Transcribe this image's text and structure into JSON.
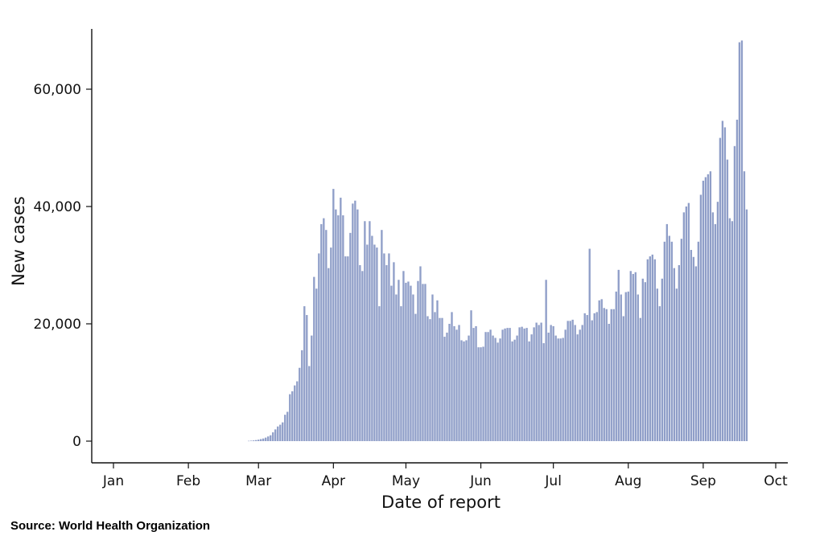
{
  "source_note": "Source:  World Health Organization",
  "chart_data": {
    "type": "bar",
    "title": "",
    "xlabel": "Date of report",
    "ylabel": "New cases",
    "ylim": [
      0,
      70000
    ],
    "yticks": [
      0,
      20000,
      40000,
      60000
    ],
    "ytick_labels": [
      "0",
      "20,000",
      "40,000",
      "60,000"
    ],
    "xticks": [
      {
        "label": "Jan",
        "day": 1
      },
      {
        "label": "Feb",
        "day": 32
      },
      {
        "label": "Mar",
        "day": 61
      },
      {
        "label": "Apr",
        "day": 92
      },
      {
        "label": "May",
        "day": 122
      },
      {
        "label": "Jun",
        "day": 153
      },
      {
        "label": "Jul",
        "day": 183
      },
      {
        "label": "Aug",
        "day": 214
      },
      {
        "label": "Sep",
        "day": 245
      },
      {
        "label": "Oct",
        "day": 275
      }
    ],
    "bar_color": "#8f9ec8",
    "grid": false,
    "series": [
      {
        "start_date": "2020-02-26",
        "values": [
          50,
          80,
          120,
          180,
          250,
          350,
          450,
          600,
          800,
          1000,
          1500,
          2000,
          2500,
          2800,
          3200,
          4500,
          5000,
          8000,
          8500,
          9500,
          10200,
          12500,
          15500,
          23000,
          21500,
          12800,
          18000,
          28000,
          26000,
          32000,
          37000,
          38000,
          36000,
          29500,
          33000,
          43000,
          39500,
          38500,
          41500,
          38500,
          31500,
          31500,
          35500,
          40500,
          41000,
          39500,
          30000,
          29000,
          37500,
          33500,
          37500,
          35000,
          33500,
          33000,
          23000,
          36000,
          32000,
          30000,
          32000,
          26500,
          30500,
          25000,
          27500,
          23000,
          29000,
          27000,
          27200,
          26500,
          25000,
          21700,
          27300,
          29800,
          26800,
          26800,
          21300,
          20800,
          25000,
          22000,
          24000,
          21000,
          21000,
          17800,
          18500,
          20000,
          22000,
          19600,
          19000,
          19800,
          17200,
          17000,
          17200,
          18000,
          22300,
          19300,
          19600,
          16000,
          16000,
          16100,
          18600,
          18600,
          19000,
          18000,
          17600,
          16800,
          17500,
          19000,
          19200,
          19300,
          19300,
          17000,
          17300,
          18000,
          19400,
          19500,
          19200,
          19300,
          17000,
          18200,
          19400,
          20200,
          19800,
          20200,
          16700,
          27500,
          18500,
          19800,
          19600,
          18000,
          17500,
          17500,
          17600,
          19000,
          20500,
          20500,
          20700,
          19800,
          18200,
          19000,
          19800,
          21800,
          21500,
          32800,
          20600,
          21800,
          22000,
          24000,
          24200,
          22700,
          22500,
          20000,
          22500,
          22500,
          25500,
          29200,
          25000,
          21300,
          25400,
          25500,
          29000,
          28500,
          28800,
          25000,
          21000,
          27700,
          27100,
          31000,
          31500,
          31800,
          31000,
          26000,
          23000,
          27700,
          34000,
          37000,
          35000,
          34000,
          29500,
          26000,
          30000,
          34500,
          39000,
          40000,
          40600,
          32600,
          31400,
          29800,
          34000,
          42000,
          44400,
          45000,
          45500,
          46000,
          39000,
          37000,
          40800,
          51700,
          54600,
          53500,
          48000,
          38000,
          37500,
          50300,
          54800,
          68000,
          68300,
          46000,
          39500
        ]
      }
    ]
  }
}
